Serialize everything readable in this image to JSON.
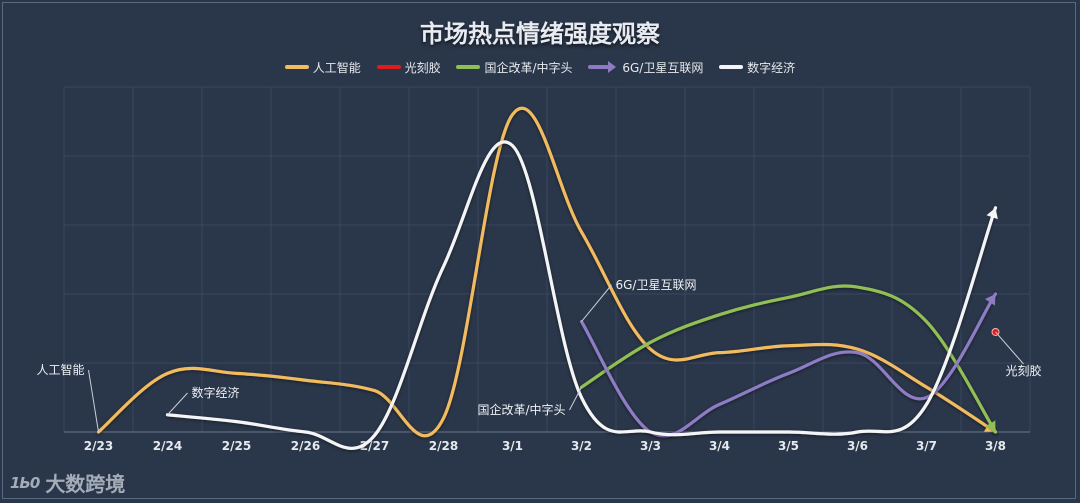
{
  "chart_data": {
    "type": "line",
    "title": "市场热点情绪强度观察",
    "categories": [
      "2/23",
      "2/24",
      "2/25",
      "2/26",
      "2/27",
      "2/28",
      "3/1",
      "3/2",
      "3/3",
      "3/4",
      "3/5",
      "3/6",
      "3/7",
      "3/8"
    ],
    "ylim": [
      0,
      100
    ],
    "grid": true,
    "legend_position": "top",
    "series": [
      {
        "name": "人工智能",
        "color": "#f2bb5e",
        "values": [
          0,
          17,
          17,
          15,
          12,
          4,
          92,
          58,
          24,
          23,
          25,
          24,
          13,
          0
        ],
        "label": "人工智能",
        "label_at": 0
      },
      {
        "name": "光刻胶",
        "color": "#e01b1b",
        "values": [
          null,
          null,
          null,
          null,
          null,
          null,
          null,
          null,
          null,
          null,
          null,
          null,
          null,
          29
        ],
        "label": "光刻胶",
        "label_at": 13
      },
      {
        "name": "国企改革/中字头",
        "color": "#8fbf55",
        "values": [
          null,
          null,
          null,
          null,
          null,
          null,
          null,
          13,
          26,
          34,
          39,
          42,
          32,
          0
        ],
        "label": "国企改革/中字头",
        "label_at": 7
      },
      {
        "name": "6G/卫星互联网",
        "color": "#8e7bc4",
        "values": [
          null,
          null,
          null,
          null,
          null,
          null,
          null,
          32,
          0,
          8,
          17,
          23,
          10,
          40
        ],
        "label": "6G/卫星互联网",
        "label_at": 7
      },
      {
        "name": "数字经济",
        "color": "#f4f5f7",
        "values": [
          null,
          5,
          3,
          0,
          -1,
          48,
          83,
          10,
          0,
          0,
          0,
          0,
          8,
          65
        ],
        "label": "数字经济",
        "label_at": 1
      }
    ]
  },
  "watermark": {
    "text": "大数跨境",
    "logo": "1Ь0"
  }
}
